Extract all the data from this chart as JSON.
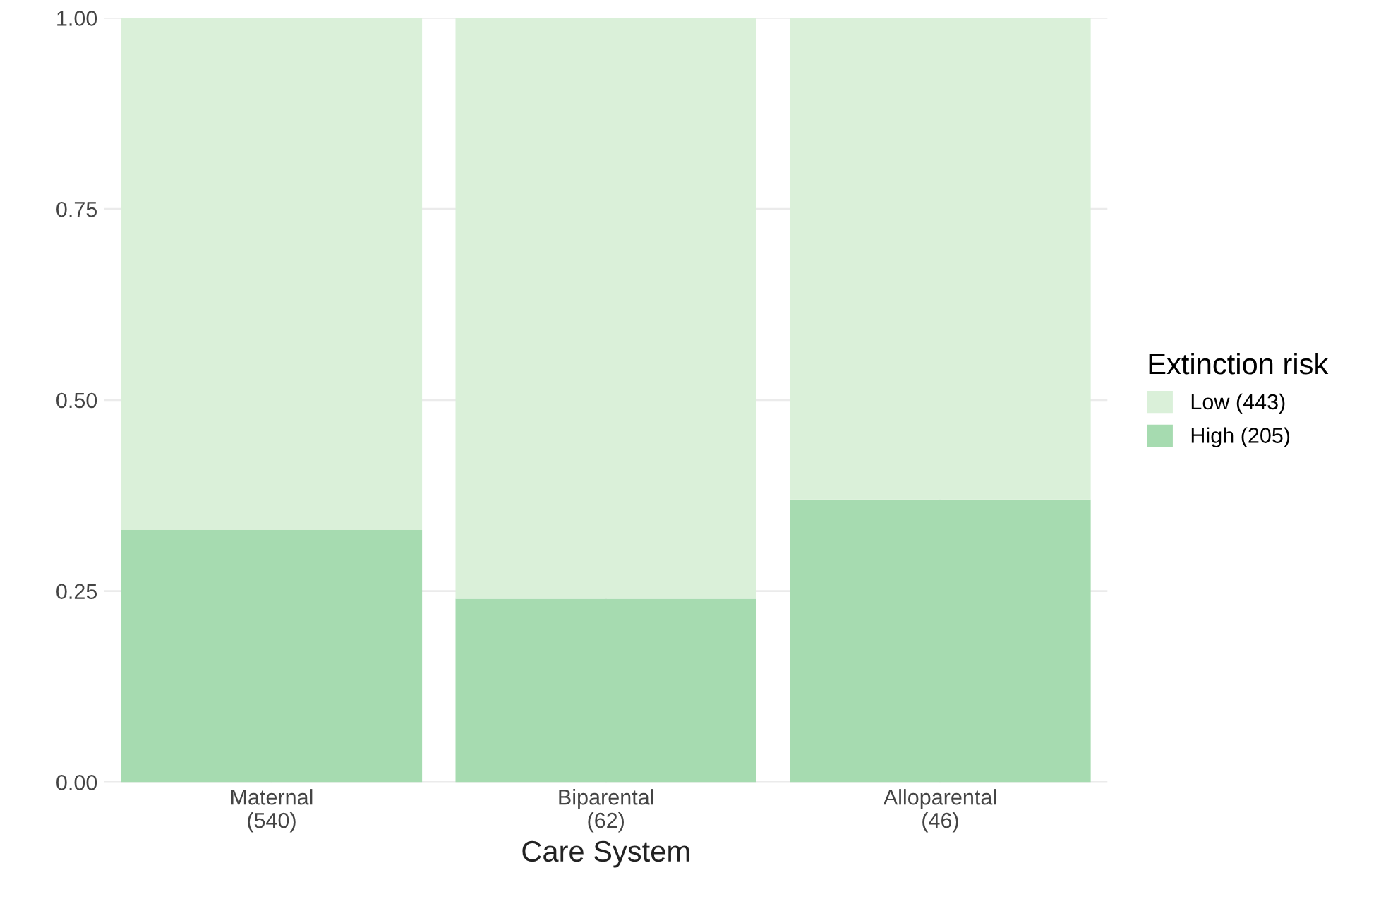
{
  "chart_data": {
    "type": "bar",
    "stacked": true,
    "xlabel": "Care System",
    "legend_title": "Extinction risk",
    "categories": [
      "Maternal\n(540)",
      "Biparental\n(62)",
      "Alloparental\n(46)"
    ],
    "series": [
      {
        "name": "High (205)",
        "color": "#a6dbb0",
        "values": [
          0.33,
          0.24,
          0.37
        ]
      },
      {
        "name": "Low (443)",
        "color": "#daf0d9",
        "values": [
          0.67,
          0.76,
          0.63
        ]
      }
    ],
    "ylim": [
      0,
      1
    ],
    "yticks": [
      {
        "value": 0,
        "label": "0.00"
      },
      {
        "value": 0.25,
        "label": "0.25"
      },
      {
        "value": 0.5,
        "label": "0.50"
      },
      {
        "value": 0.75,
        "label": "0.75"
      },
      {
        "value": 1,
        "label": "1.00"
      }
    ],
    "grid": true,
    "legend": "right"
  }
}
